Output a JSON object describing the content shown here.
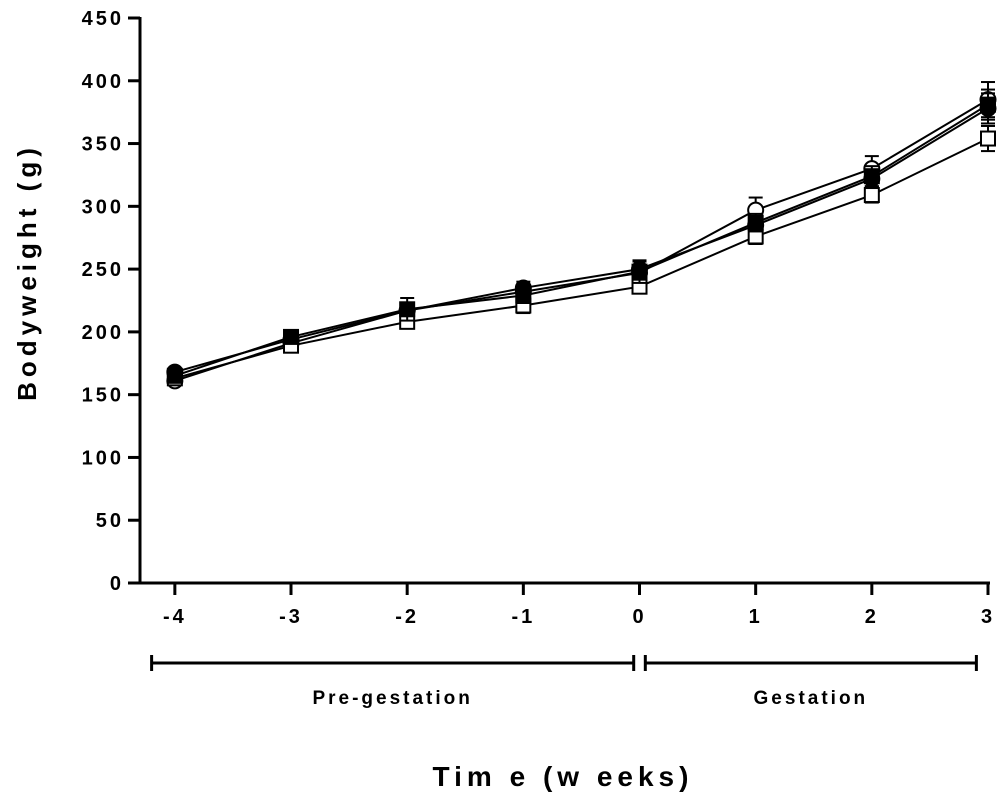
{
  "chart_data": {
    "type": "line",
    "title": "",
    "xlabel": "Time (weeks)",
    "xlabel_display": "Tim e (w eeks)",
    "ylabel": "Bodyweight (g)",
    "x": [
      -4,
      -3,
      -2,
      -1,
      0,
      1,
      2,
      3
    ],
    "xticks": [
      "-4",
      "-3",
      "-2",
      "-1",
      "0",
      "1",
      "2",
      "3"
    ],
    "yticks": [
      "0",
      "50",
      "100",
      "150",
      "200",
      "250",
      "300",
      "350",
      "400",
      "450"
    ],
    "xlim": [
      -4.3,
      3.0
    ],
    "ylim": [
      0,
      450
    ],
    "grid": false,
    "legend": "none",
    "phases": [
      {
        "label": "Pre-gestation",
        "display": "Pre-gestation",
        "from": -4.2,
        "to": -0.05
      },
      {
        "label": "Gestation",
        "display": "Gestation",
        "from": 0.05,
        "to": 2.9
      }
    ],
    "series": [
      {
        "marker": "open-circle",
        "values": [
          161,
          191,
          217,
          232,
          247,
          297,
          330,
          385
        ],
        "err": [
          2,
          3,
          4,
          5,
          6,
          10,
          10,
          14
        ]
      },
      {
        "marker": "filled-circle",
        "values": [
          168,
          194,
          217,
          235,
          250,
          285,
          322,
          378
        ],
        "err": [
          2,
          3,
          4,
          5,
          6,
          6,
          6,
          12
        ]
      },
      {
        "marker": "open-square",
        "values": [
          163,
          189,
          208,
          221,
          236,
          276,
          309,
          354
        ],
        "err": [
          2,
          3,
          4,
          6,
          5,
          6,
          6,
          10
        ]
      },
      {
        "marker": "filled-square",
        "values": [
          165,
          196,
          218,
          229,
          248,
          287,
          324,
          381
        ],
        "err": [
          2,
          3,
          9,
          6,
          9,
          7,
          8,
          12
        ]
      }
    ]
  }
}
